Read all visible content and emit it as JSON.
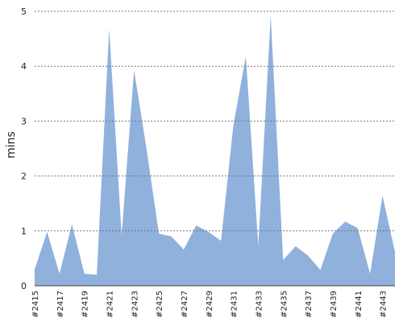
{
  "chart_data": {
    "type": "area",
    "y_label": "mins",
    "categories": [
      "#2415",
      null,
      "#2417",
      null,
      "#2419",
      null,
      "#2421",
      null,
      "#2423",
      null,
      "#2425",
      null,
      "#2427",
      null,
      "#2429",
      null,
      "#2431",
      null,
      "#2433",
      null,
      "#2435",
      null,
      "#2437",
      null,
      "#2439",
      null,
      "#2441",
      null,
      "#2443",
      null
    ],
    "values": [
      0.3,
      0.98,
      0.22,
      1.12,
      0.22,
      0.2,
      4.68,
      0.92,
      3.93,
      2.5,
      0.95,
      0.9,
      0.66,
      1.1,
      0.98,
      0.82,
      2.93,
      4.18,
      0.73,
      4.92,
      0.47,
      0.72,
      0.55,
      0.29,
      0.95,
      1.17,
      1.05,
      0.22,
      1.64,
      0.62
    ],
    "color": "#8fb1dc",
    "ylim": [
      0,
      5
    ],
    "yticks": [
      0,
      1,
      2,
      3,
      4,
      5
    ],
    "grid": true
  }
}
